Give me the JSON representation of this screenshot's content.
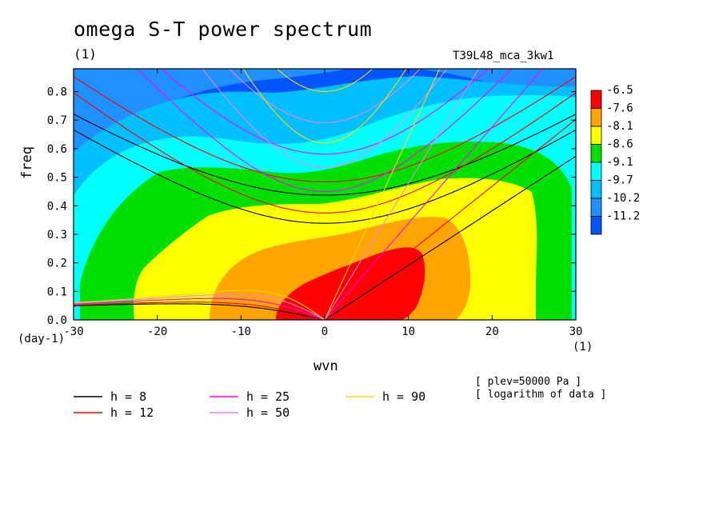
{
  "chart_data": {
    "type": "heatmap",
    "title": "omega S-T power spectrum",
    "subtitle": "(1)",
    "run_label": "T39L48_mca_3kw1",
    "xlabel": "wvn",
    "ylabel": "freq",
    "x_unit_label": "(1)",
    "y_unit_label": "(day-1)",
    "xlim": [
      -30,
      30
    ],
    "ylim": [
      0.0,
      0.88
    ],
    "x_ticks": [
      "-30",
      "-20",
      "-10",
      "0",
      "10",
      "20",
      "30"
    ],
    "x_tick_values": [
      -30,
      -20,
      -10,
      0,
      10,
      20,
      30
    ],
    "y_ticks": [
      "0.0",
      "0.1",
      "0.2",
      "0.3",
      "0.4",
      "0.5",
      "0.6",
      "0.7",
      "0.8"
    ],
    "y_tick_values": [
      0.0,
      0.1,
      0.2,
      0.3,
      0.4,
      0.5,
      0.6,
      0.7,
      0.8
    ],
    "contour_levels": [
      "-6.5",
      "-7.6",
      "-8.1",
      "-8.6",
      "-9.1",
      "-9.7",
      "-10.2",
      "-11.2"
    ],
    "contour_colors": [
      "#ff0000",
      "#ffa500",
      "#ffff00",
      "#00e000",
      "#00ffff",
      "#00bfff",
      "#1e90ff",
      "#0055ff"
    ],
    "dispersion_curves": [
      {
        "name": "h =  8",
        "h": 8,
        "color": "#000000"
      },
      {
        "name": "h = 12",
        "h": 12,
        "color": "#ff0000"
      },
      {
        "name": "h = 25",
        "h": 25,
        "color": "#ff00ff"
      },
      {
        "name": "h = 50",
        "h": 50,
        "color": "#ee82ee"
      },
      {
        "name": "h = 90",
        "h": 90,
        "color": "#ffd700"
      }
    ],
    "notes": [
      "[ plev=50000 Pa ]",
      "[ logarithm of data ]"
    ]
  }
}
